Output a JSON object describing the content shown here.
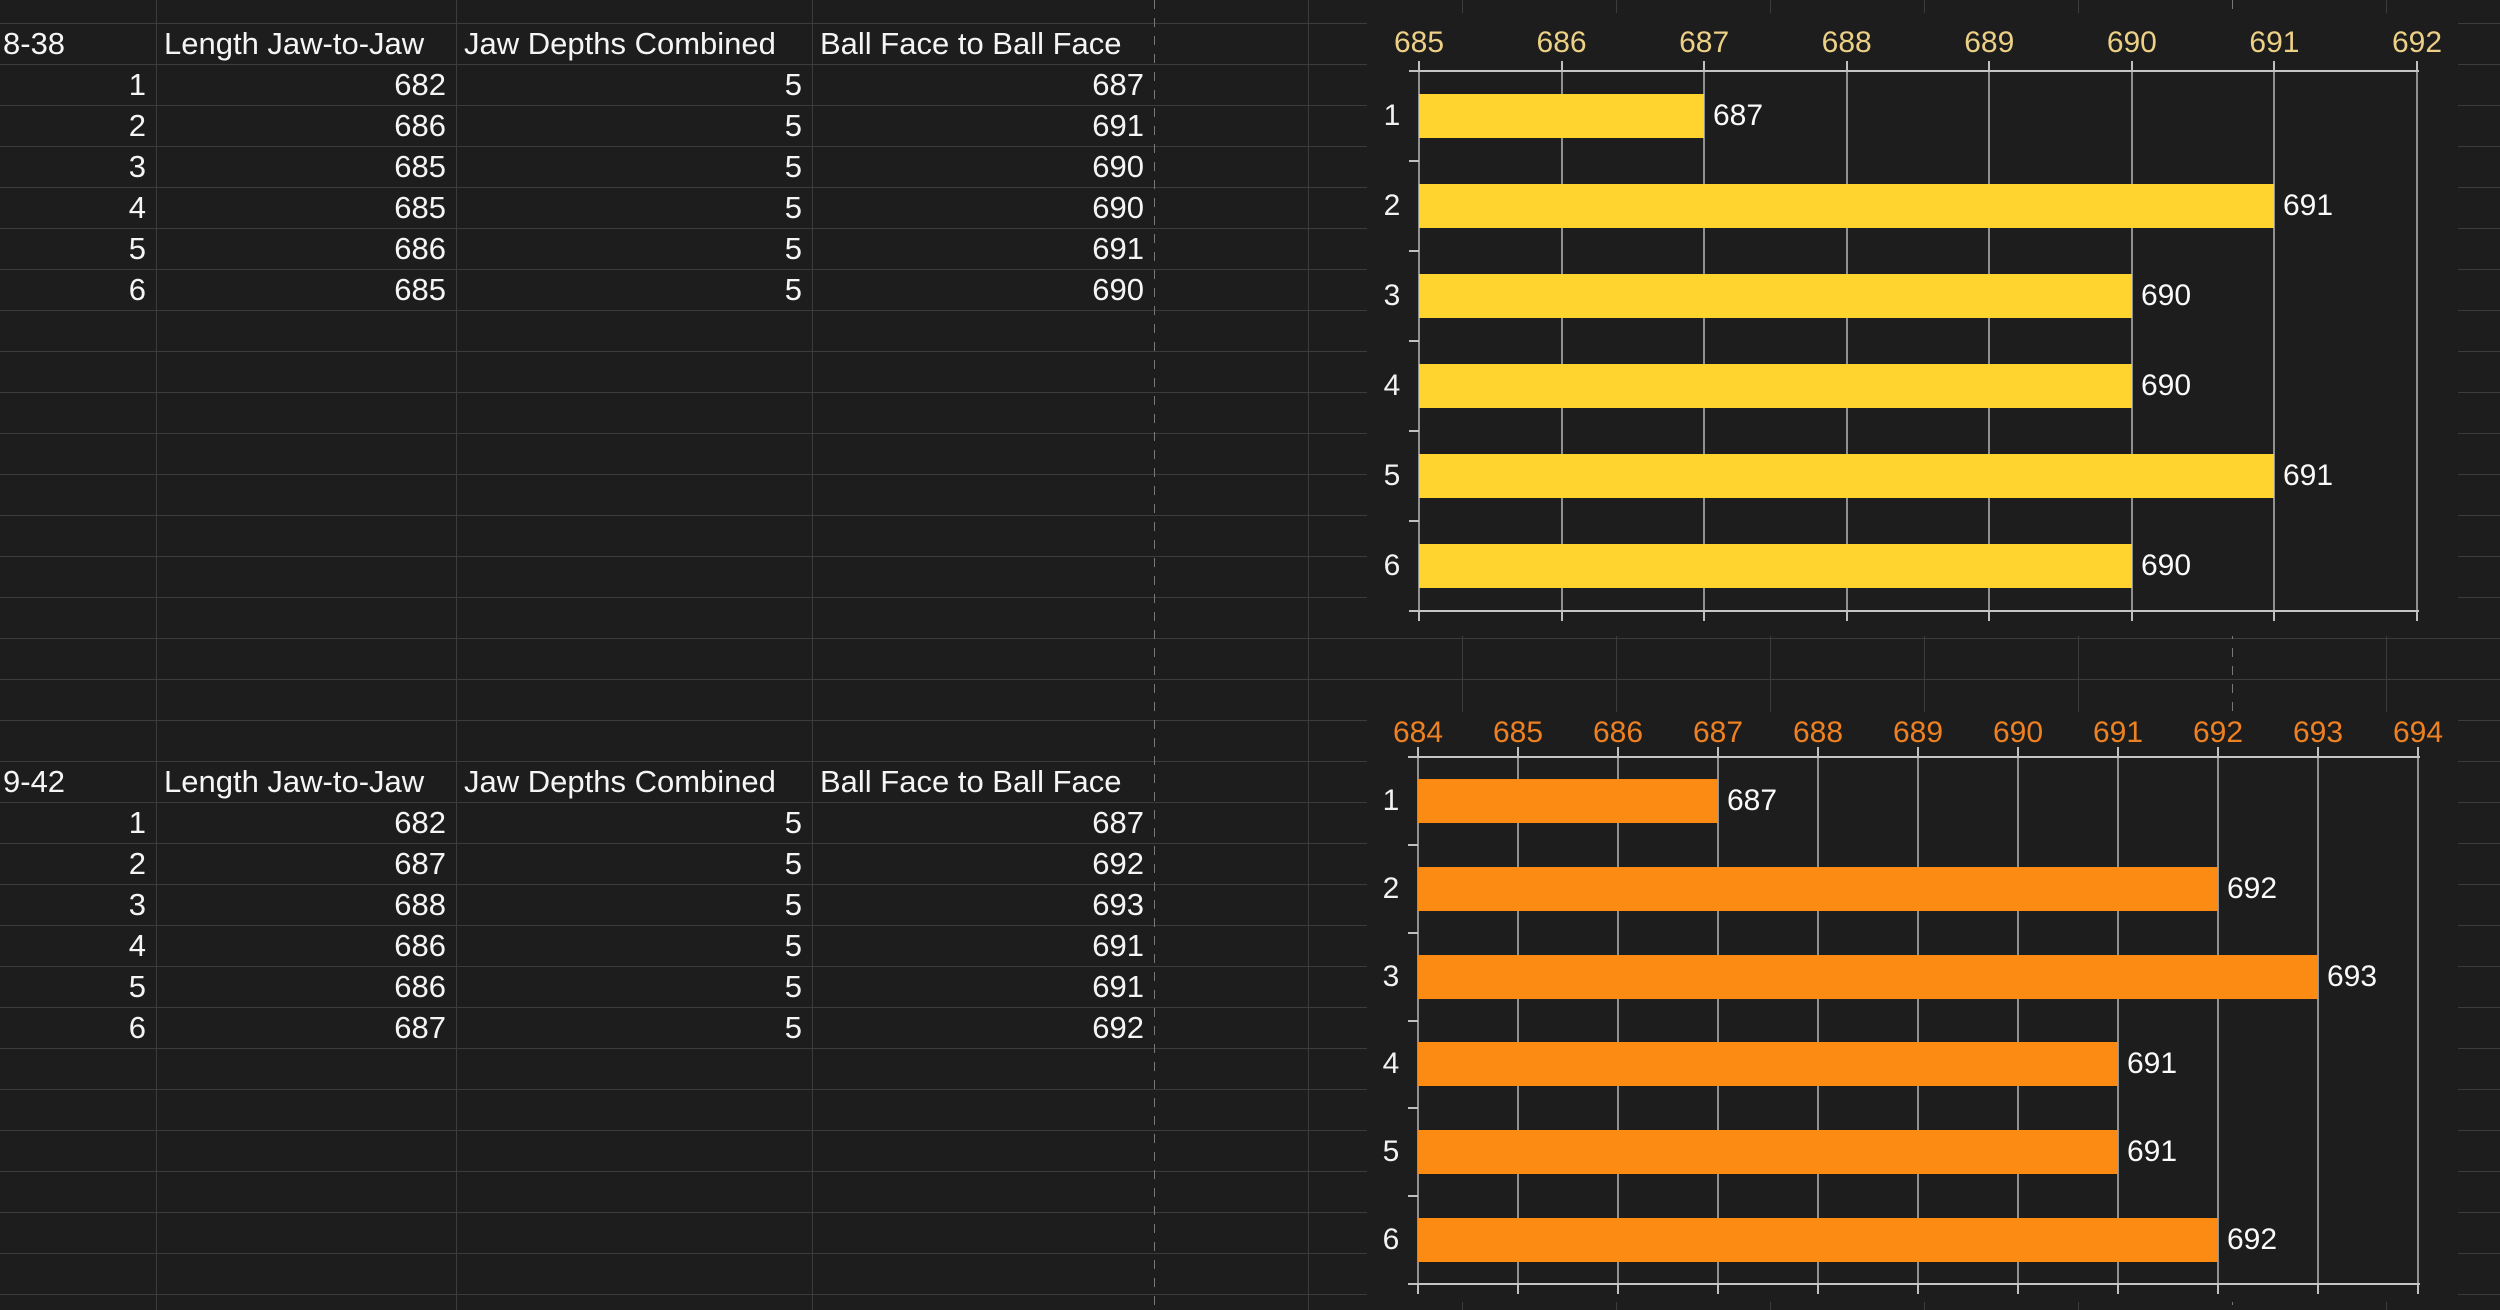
{
  "sheet": {
    "tables": [
      {
        "title": "8-38",
        "columns": [
          "Length Jaw-to-Jaw",
          "Jaw Depths Combined",
          "Ball Face to Ball Face"
        ],
        "rows": [
          [
            1,
            682,
            5,
            687
          ],
          [
            2,
            686,
            5,
            691
          ],
          [
            3,
            685,
            5,
            690
          ],
          [
            4,
            685,
            5,
            690
          ],
          [
            5,
            686,
            5,
            691
          ],
          [
            6,
            685,
            5,
            690
          ]
        ]
      },
      {
        "title": "9-42",
        "columns": [
          "Length Jaw-to-Jaw",
          "Jaw Depths Combined",
          "Ball Face to Ball Face"
        ],
        "rows": [
          [
            1,
            682,
            5,
            687
          ],
          [
            2,
            687,
            5,
            692
          ],
          [
            3,
            688,
            5,
            693
          ],
          [
            4,
            686,
            5,
            691
          ],
          [
            5,
            686,
            5,
            691
          ],
          [
            6,
            687,
            5,
            692
          ]
        ]
      }
    ]
  },
  "chart_data": [
    {
      "type": "bar",
      "orientation": "horizontal",
      "categories": [
        "1",
        "2",
        "3",
        "4",
        "5",
        "6"
      ],
      "values": [
        687,
        691,
        690,
        690,
        691,
        690
      ],
      "xlim": [
        685,
        692
      ],
      "xticks": [
        685,
        686,
        687,
        688,
        689,
        690,
        691,
        692
      ],
      "axis_position": "top",
      "grid": true,
      "value_labels": [
        687,
        691,
        690,
        690,
        691,
        690
      ],
      "bar_color": "#ffd42e",
      "tick_label_color": "#ecd085"
    },
    {
      "type": "bar",
      "orientation": "horizontal",
      "categories": [
        "1",
        "2",
        "3",
        "4",
        "5",
        "6"
      ],
      "values": [
        687,
        692,
        693,
        691,
        691,
        692
      ],
      "xlim": [
        684,
        694
      ],
      "xticks": [
        684,
        685,
        686,
        687,
        688,
        689,
        690,
        691,
        692,
        693,
        694
      ],
      "axis_position": "top",
      "grid": true,
      "value_labels": [
        687,
        692,
        693,
        691,
        691,
        692
      ],
      "bar_color": "#fb8b12",
      "tick_label_color": "#ee8122"
    }
  ]
}
